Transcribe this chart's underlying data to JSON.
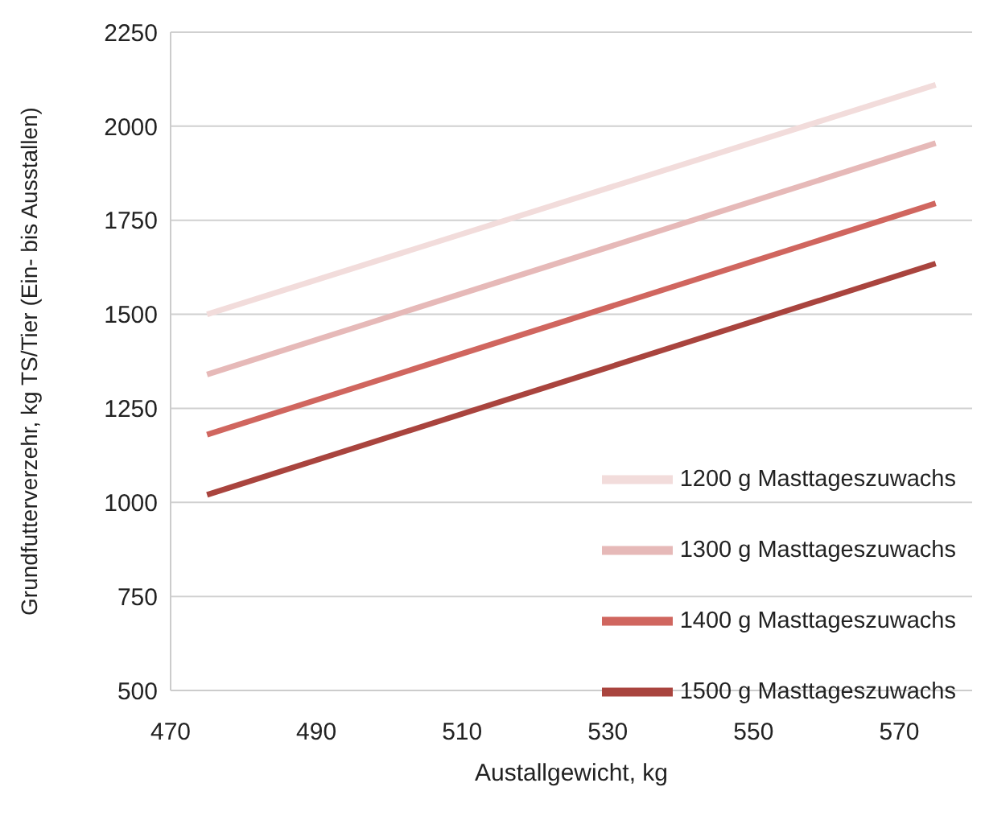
{
  "chart_data": {
    "type": "line",
    "xlabel": "Austallgewicht, kg",
    "ylabel": "Grundfutterverzehr, kg TS/Tier (Ein- bis Ausstallen)",
    "x": [
      475,
      575
    ],
    "series": [
      {
        "name": "1200 g Masttageszuwachs",
        "color": "#f2dcdb",
        "values": [
          1500,
          2110
        ]
      },
      {
        "name": "1300 g Masttageszuwachs",
        "color": "#e6b9b8",
        "values": [
          1340,
          1955
        ]
      },
      {
        "name": "1400 g Masttageszuwachs",
        "color": "#d0665f",
        "values": [
          1180,
          1795
        ]
      },
      {
        "name": "1500 g Masttageszuwachs",
        "color": "#a9443e",
        "values": [
          1020,
          1635
        ]
      }
    ],
    "xlim": [
      470,
      580
    ],
    "xticks": [
      470,
      490,
      510,
      530,
      550,
      570
    ],
    "ylim": [
      500,
      2250
    ],
    "yticks": [
      500,
      750,
      1000,
      1250,
      1500,
      1750,
      2000,
      2250
    ],
    "grid": "y",
    "legend": "bottom right",
    "marker": "none",
    "line_style": "solid"
  }
}
